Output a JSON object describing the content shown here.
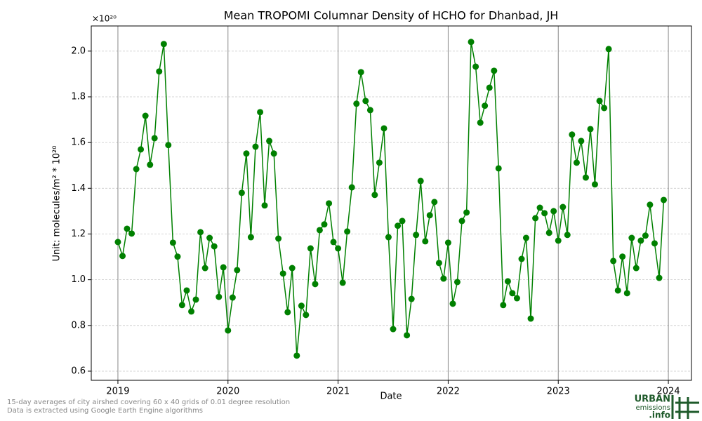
{
  "chart_data": {
    "type": "line",
    "title": "Mean TROPOMI Columnar Density of HCHO for Dhanbad, JH",
    "x_label": "Date",
    "y_label": "Unit: molecules/m² * 10²⁰",
    "y_offset_label": "×10²⁰",
    "x": [
      2019.0,
      2019.042,
      2019.083,
      2019.125,
      2019.167,
      2019.208,
      2019.25,
      2019.292,
      2019.333,
      2019.375,
      2019.417,
      2019.458,
      2019.5,
      2019.542,
      2019.583,
      2019.625,
      2019.667,
      2019.708,
      2019.75,
      2019.792,
      2019.833,
      2019.875,
      2019.917,
      2019.958,
      2020.0,
      2020.042,
      2020.083,
      2020.125,
      2020.167,
      2020.208,
      2020.25,
      2020.292,
      2020.333,
      2020.375,
      2020.417,
      2020.458,
      2020.5,
      2020.542,
      2020.583,
      2020.625,
      2020.667,
      2020.708,
      2020.75,
      2020.792,
      2020.833,
      2020.875,
      2020.917,
      2020.958,
      2021.0,
      2021.042,
      2021.083,
      2021.125,
      2021.167,
      2021.208,
      2021.25,
      2021.292,
      2021.333,
      2021.375,
      2021.417,
      2021.458,
      2021.5,
      2021.542,
      2021.583,
      2021.625,
      2021.667,
      2021.708,
      2021.75,
      2021.792,
      2021.833,
      2021.875,
      2021.917,
      2021.958,
      2022.0,
      2022.042,
      2022.083,
      2022.125,
      2022.167,
      2022.208,
      2022.25,
      2022.292,
      2022.333,
      2022.375,
      2022.417,
      2022.458,
      2022.5,
      2022.542,
      2022.583,
      2022.625,
      2022.667,
      2022.708,
      2022.75,
      2022.792,
      2022.833,
      2022.875,
      2022.917,
      2022.958,
      2023.0,
      2023.042,
      2023.083,
      2023.125,
      2023.167,
      2023.208,
      2023.25,
      2023.292,
      2023.333,
      2023.375,
      2023.417,
      2023.458,
      2023.5,
      2023.542,
      2023.583,
      2023.625,
      2023.667,
      2023.708,
      2023.75,
      2023.792,
      2023.833,
      2023.875,
      2023.917,
      2023.958
    ],
    "series": [
      {
        "color": "#008000",
        "values": [
          1.165,
          1.104,
          1.223,
          1.202,
          1.484,
          1.57,
          1.717,
          1.503,
          1.619,
          1.911,
          2.031,
          1.589,
          1.162,
          1.101,
          0.889,
          0.953,
          0.861,
          0.913,
          1.208,
          1.051,
          1.183,
          1.146,
          0.925,
          1.054,
          0.778,
          0.922,
          1.042,
          1.38,
          1.552,
          1.186,
          1.582,
          1.733,
          1.325,
          1.607,
          1.552,
          1.18,
          1.027,
          0.858,
          1.051,
          0.668,
          0.886,
          0.846,
          1.137,
          0.981,
          1.217,
          1.242,
          1.334,
          1.165,
          1.137,
          0.987,
          1.211,
          1.404,
          1.77,
          1.908,
          1.782,
          1.742,
          1.371,
          1.512,
          1.662,
          1.186,
          0.784,
          1.236,
          1.257,
          0.757,
          0.916,
          1.196,
          1.432,
          1.168,
          1.282,
          1.34,
          1.073,
          1.005,
          1.162,
          0.895,
          0.99,
          1.257,
          1.294,
          2.04,
          1.932,
          1.687,
          1.761,
          1.84,
          1.914,
          1.487,
          0.889,
          0.993,
          0.941,
          0.919,
          1.091,
          1.183,
          0.83,
          1.269,
          1.315,
          1.291,
          1.205,
          1.3,
          1.171,
          1.318,
          1.196,
          1.635,
          1.512,
          1.607,
          1.447,
          1.659,
          1.417,
          1.782,
          1.751,
          2.009,
          1.082,
          0.953,
          1.101,
          0.941,
          1.183,
          1.051,
          1.171,
          1.193,
          1.328,
          1.159,
          1.008,
          1.349
        ]
      }
    ],
    "xlim": [
      2018.758,
      2024.21
    ],
    "ylim": [
      0.56,
      2.11
    ],
    "xticks": [
      2019,
      2020,
      2021,
      2022,
      2023,
      2024
    ],
    "yticks": [
      0.6,
      0.8,
      {
        "value": 1,
        "label": "1.0"
      },
      1.2,
      1.4,
      1.6,
      1.8,
      {
        "value": 2,
        "label": "2.0"
      }
    ],
    "grid": true,
    "notes": [
      "15-day averages of city airshed covering 60 x 40 grids of 0.01 degree resolution",
      "Data is extracted using Google Earth Engine algorithms"
    ],
    "logo": [
      "URBAN",
      "emissions",
      ".info"
    ]
  }
}
